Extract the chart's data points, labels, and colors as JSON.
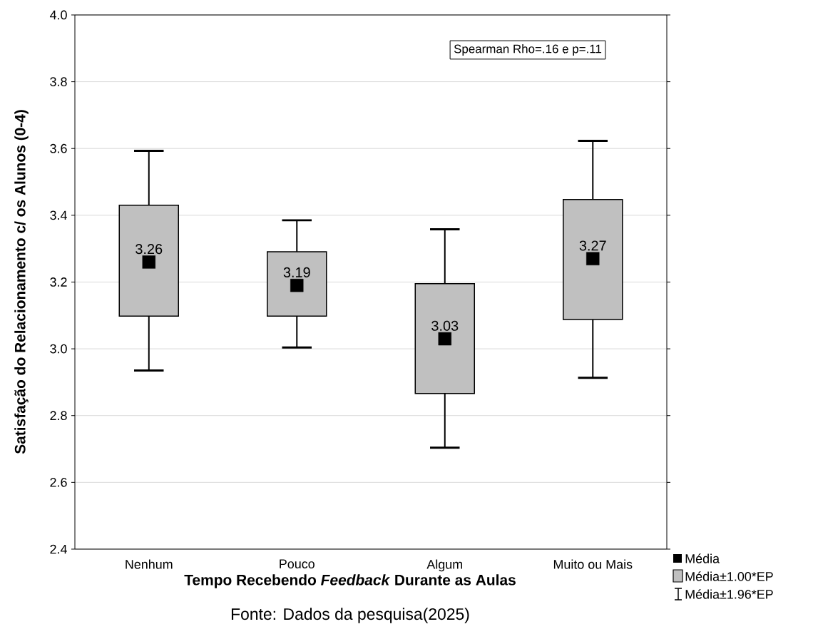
{
  "chart_data": {
    "type": "box",
    "xlabel": "Tempo Recebendo *Feedback* Durante as Aulas",
    "ylabel": "Satisfação do Relacionamento c/ os Alunos (0-4)",
    "categories": [
      "Nenhum",
      "Pouco",
      "Algum",
      "Muito ou Mais"
    ],
    "series": [
      {
        "name": "Média±1.00*EP",
        "color": "#c0c0c0",
        "boxes": [
          {
            "low": 2.935,
            "q1": 3.098,
            "median": 3.26,
            "q3": 3.43,
            "high": 3.593
          },
          {
            "low": 3.004,
            "q1": 3.098,
            "median": 3.19,
            "q3": 3.291,
            "high": 3.385
          },
          {
            "low": 2.704,
            "q1": 2.866,
            "median": 3.03,
            "q3": 3.195,
            "high": 3.358
          },
          {
            "low": 2.913,
            "q1": 3.088,
            "median": 3.27,
            "q3": 3.447,
            "high": 3.623
          }
        ],
        "value_labels": [
          "3.26",
          "3.19",
          "3.03",
          "3.27"
        ]
      }
    ],
    "marker": "square",
    "ylim": [
      2.4,
      4.0
    ],
    "yticks": [
      2.4,
      2.6,
      2.8,
      {
        "value": 3.0,
        "label": "3.0"
      },
      3.2,
      3.4,
      3.6,
      3.8,
      {
        "value": 4.0,
        "label": "4.0"
      }
    ],
    "grid": "y",
    "legend": "bottom right",
    "annotations": [
      "Spearman Rho=.16 e p=.11",
      "Fonte: Dados da pesquisa(2025)",
      "Média",
      "Média±1.96*EP"
    ]
  }
}
